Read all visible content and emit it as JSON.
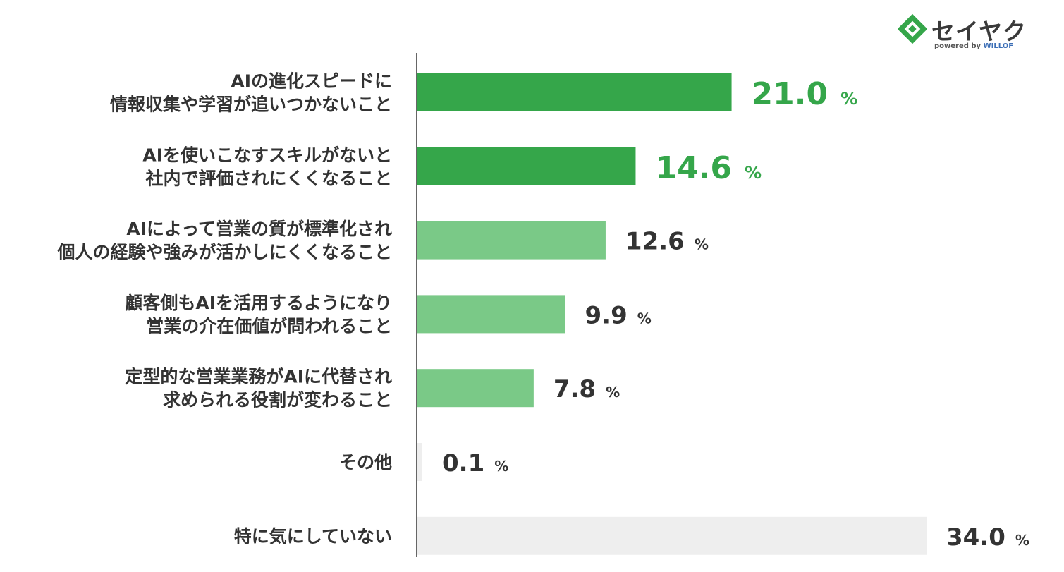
{
  "brand": {
    "name": "セイヤク",
    "powered_by": "powered by",
    "partner": "WILLOF",
    "colors": {
      "green": "#35a64a",
      "dark": "#3a3a3a"
    }
  },
  "chart_data": {
    "type": "bar",
    "orientation": "horizontal",
    "title": "",
    "xlabel": "",
    "ylabel": "",
    "unit": "%",
    "xlim": [
      0,
      34
    ],
    "grid": false,
    "categories": [
      [
        "AIの進化スピードに",
        "情報収集や学習が追いつかないこと"
      ],
      [
        "AIを使いこなすスキルがないと",
        "社内で評価されにくくなること"
      ],
      [
        "AIによって営業の質が標準化され",
        "個人の経験や強みが活かしにくくなること"
      ],
      [
        "顧客側もAIを活用するようになり",
        "営業の介在価値が問われること"
      ],
      [
        "定型的な営業業務がAIに代替され",
        "求められる役割が変わること"
      ],
      [
        "その他"
      ],
      [
        "特に気にしていない"
      ]
    ],
    "values": [
      21.0,
      14.6,
      12.6,
      9.9,
      7.8,
      0.1,
      34.0
    ],
    "value_labels": [
      "21.0",
      "14.6",
      "12.6",
      "9.9",
      "7.8",
      "0.1",
      "34.0"
    ],
    "bar_colors": [
      "#35a64a",
      "#35a64a",
      "#7ac987",
      "#7ac987",
      "#7ac987",
      "#eeeeee",
      "#eeeeee"
    ],
    "label_colors": [
      "#35a64a",
      "#35a64a",
      "#333333",
      "#333333",
      "#333333",
      "#333333",
      "#333333"
    ],
    "axis_color": "#666666"
  }
}
